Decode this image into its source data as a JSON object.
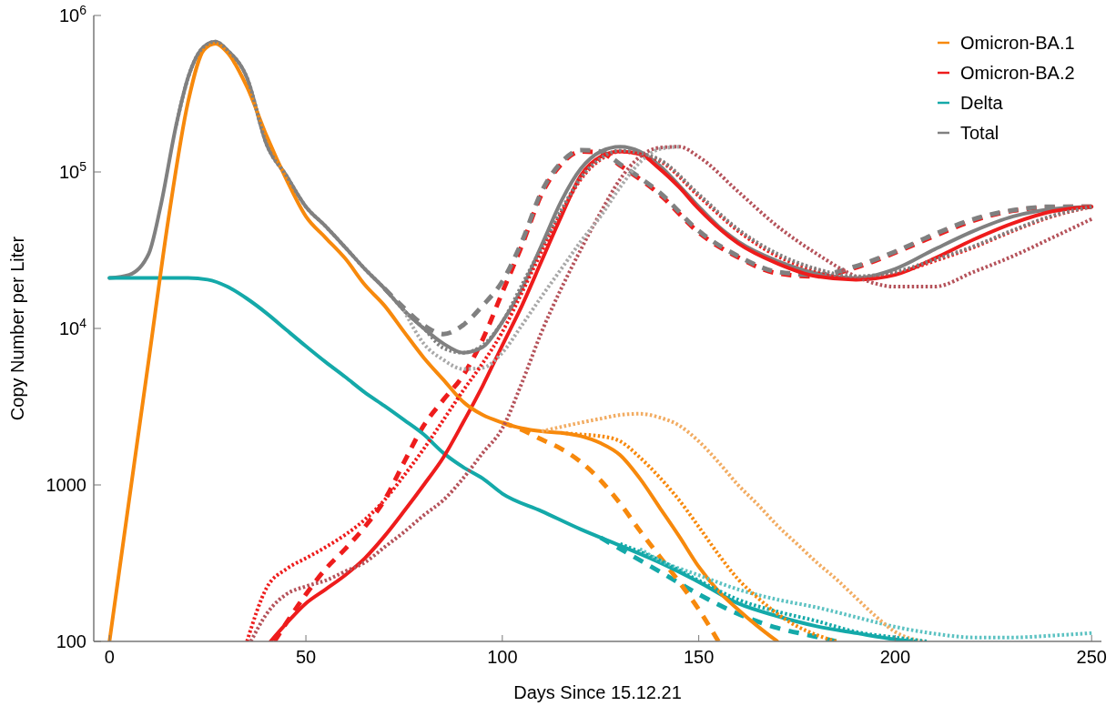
{
  "chart_data": {
    "type": "line",
    "xlabel": "Days Since 15.12.21",
    "ylabel": "Copy Number per Liter",
    "log": true,
    "legend": "top right",
    "xlim": [
      -4,
      252.5
    ],
    "xticks": [
      0,
      50,
      100,
      150,
      200,
      250
    ],
    "ylim": [
      100,
      1000000
    ],
    "yticks": [
      100,
      1000,
      {
        "value": 10000,
        "label": "10$^{4}$"
      },
      {
        "value": 100000,
        "label": "10$^{5}$"
      },
      {
        "value": 1000000,
        "label": "10$^{6}$"
      }
    ],
    "series": [
      {
        "name": "Omicron-BA.1",
        "color": "#f7890c",
        "line_style": "solid",
        "x": [
          0,
          5,
          10,
          15,
          20,
          24,
          27,
          30,
          35,
          40,
          45,
          50,
          55,
          60,
          65,
          70,
          75,
          80,
          85,
          90,
          95,
          100,
          105,
          110,
          115,
          120,
          125,
          130,
          135,
          140,
          145,
          150,
          155,
          160,
          165,
          170
        ],
        "values": [
          100,
          800,
          6300,
          50000,
          280000,
          600000,
          660000,
          580000,
          350000,
          170000,
          90000,
          52000,
          38000,
          28000,
          19000,
          14000,
          9500,
          6500,
          4700,
          3400,
          2800,
          2500,
          2300,
          2200,
          2150,
          2050,
          1850,
          1550,
          1100,
          720,
          470,
          300,
          210,
          160,
          125,
          100
        ]
      },
      {
        "name": "Omicron-BA.2",
        "color": "#ee1c1c",
        "line_style": "solid",
        "x": [
          41,
          45,
          50,
          55,
          60,
          65,
          70,
          75,
          80,
          85,
          90,
          95,
          100,
          105,
          110,
          115,
          120,
          125,
          130,
          135,
          140,
          145,
          150,
          160,
          170,
          180,
          190,
          200,
          210,
          220,
          230,
          240,
          250
        ],
        "values": [
          100,
          130,
          175,
          215,
          265,
          340,
          470,
          680,
          1000,
          1500,
          2500,
          4300,
          7800,
          14000,
          27000,
          52000,
          95000,
          125000,
          135000,
          130000,
          105000,
          80000,
          58000,
          35000,
          26000,
          21500,
          20500,
          22000,
          28000,
          37000,
          47000,
          56000,
          60000
        ]
      },
      {
        "name": "Delta",
        "color": "#14a9a9",
        "line_style": "solid",
        "x": [
          0,
          10,
          20,
          25,
          30,
          35,
          40,
          45,
          50,
          55,
          60,
          65,
          70,
          75,
          80,
          85,
          90,
          95,
          100,
          110,
          120,
          130,
          140,
          150,
          160,
          170,
          180,
          190,
          200,
          205
        ],
        "values": [
          21000,
          21000,
          21000,
          20500,
          18500,
          15500,
          12500,
          9800,
          7700,
          6100,
          4900,
          3900,
          3200,
          2600,
          2100,
          1600,
          1300,
          1100,
          880,
          680,
          520,
          410,
          320,
          240,
          175,
          145,
          125,
          113,
          103,
          100
        ]
      },
      {
        "name": "Total",
        "color": "#808080",
        "line_style": "solid",
        "x": [
          0,
          5,
          10,
          13,
          17,
          20,
          24,
          27,
          30,
          35,
          40,
          45,
          50,
          55,
          60,
          65,
          70,
          75,
          80,
          85,
          90,
          95,
          100,
          105,
          110,
          115,
          120,
          125,
          130,
          135,
          140,
          145,
          150,
          155,
          160,
          170,
          180,
          190,
          200,
          210,
          220,
          230,
          240,
          250
        ],
        "values": [
          21000,
          22000,
          30000,
          60000,
          200000,
          400000,
          630000,
          680000,
          600000,
          400000,
          150000,
          95000,
          60000,
          45000,
          33000,
          24000,
          18000,
          13000,
          10000,
          8000,
          7000,
          7600,
          11000,
          18000,
          34000,
          65000,
          105000,
          135000,
          145000,
          135000,
          110000,
          82000,
          60000,
          45000,
          36000,
          27000,
          22500,
          21000,
          24000,
          32000,
          42000,
          52000,
          58000,
          60000
        ]
      },
      {
        "color": "#808080",
        "line_style": "dashed",
        "x": [
          70,
          75,
          80,
          85,
          90,
          95,
          100,
          105,
          110,
          115,
          120,
          125,
          130,
          135,
          140,
          150,
          160,
          170,
          180,
          190,
          200,
          210,
          220,
          230,
          240,
          250
        ],
        "values": [
          18000,
          13500,
          10500,
          9200,
          10500,
          14000,
          20000,
          36000,
          75000,
          115000,
          138000,
          135000,
          112000,
          92000,
          74000,
          42000,
          29000,
          23000,
          22000,
          25000,
          31000,
          40000,
          50000,
          57000,
          60000,
          60000
        ]
      },
      {
        "color": "#ee1c1c",
        "line_style": "dashed",
        "x": [
          42,
          50,
          55,
          60,
          65,
          70,
          75,
          80,
          85,
          90,
          95,
          100,
          105,
          110,
          115,
          120,
          125,
          130,
          140,
          150,
          160,
          170,
          180,
          190,
          200,
          210,
          220,
          230,
          240,
          250
        ],
        "values": [
          100,
          200,
          290,
          390,
          540,
          800,
          1400,
          2400,
          3500,
          5000,
          8500,
          17000,
          34000,
          72000,
          112000,
          135000,
          133000,
          110000,
          72000,
          41000,
          28500,
          22500,
          21500,
          24500,
          30500,
          39000,
          49000,
          56500,
          59500,
          60000
        ]
      },
      {
        "color": "#f7890c",
        "line_style": "dashed",
        "x": [
          100,
          105,
          110,
          115,
          120,
          125,
          130,
          135,
          140,
          145,
          150,
          155
        ],
        "values": [
          2500,
          2250,
          1950,
          1700,
          1400,
          1070,
          760,
          510,
          350,
          240,
          160,
          100
        ]
      },
      {
        "color": "#14a9a9",
        "line_style": "dashed",
        "x": [
          125,
          130,
          140,
          150,
          160,
          170,
          180,
          185
        ],
        "values": [
          460,
          390,
          280,
          200,
          150,
          122,
          107,
          100
        ]
      },
      {
        "color": "#808080",
        "line_style": "dotted",
        "x": [
          17,
          20,
          24,
          27,
          30,
          35,
          40,
          45,
          50,
          55,
          60,
          65,
          70,
          75,
          80,
          85,
          90,
          95,
          100,
          105,
          110,
          115,
          120,
          125,
          130,
          135,
          140,
          150,
          160,
          170,
          180,
          190,
          200,
          210,
          220,
          230,
          240,
          250
        ],
        "values": [
          200000,
          400000,
          630000,
          680000,
          600000,
          400000,
          150000,
          95000,
          60000,
          45000,
          33000,
          24000,
          18000,
          13000,
          10000,
          7500,
          7000,
          7800,
          11000,
          19000,
          33000,
          57000,
          92000,
          122000,
          137000,
          132000,
          120000,
          72000,
          43000,
          30000,
          24000,
          21500,
          23000,
          27500,
          33500,
          42500,
          52500,
          60000
        ]
      },
      {
        "color": "#ee1c1c",
        "line_style": "dotted",
        "x": [
          35,
          40,
          45,
          50,
          55,
          60,
          65,
          70,
          75,
          80,
          85,
          90,
          95,
          100,
          105,
          110,
          115,
          120,
          125,
          130,
          135,
          140,
          150,
          160,
          170,
          180,
          190,
          200,
          210,
          220,
          230,
          240,
          250
        ],
        "values": [
          100,
          220,
          290,
          340,
          400,
          480,
          600,
          800,
          1150,
          1700,
          2600,
          4000,
          6000,
          9500,
          17000,
          31000,
          55000,
          90000,
          120000,
          135000,
          130000,
          118000,
          70000,
          42000,
          29000,
          23500,
          21000,
          22500,
          27000,
          33000,
          42000,
          52000,
          60000
        ]
      },
      {
        "color": "#f7890c",
        "line_style": "dotted",
        "x": [
          115,
          120,
          125,
          130,
          135,
          140,
          145,
          150,
          155,
          160,
          165,
          170,
          175,
          180,
          185
        ],
        "values": [
          2150,
          2100,
          2050,
          1900,
          1500,
          1120,
          800,
          540,
          360,
          250,
          190,
          150,
          125,
          110,
          100
        ]
      },
      {
        "color": "#14a9a9",
        "line_style": "dotted",
        "x": [
          130,
          140,
          150,
          160,
          170,
          180,
          190,
          200,
          208
        ],
        "values": [
          420,
          330,
          245,
          185,
          155,
          135,
          115,
          106,
          100
        ]
      },
      {
        "color": "#a8a8a8",
        "line_style": "dotted",
        "x": [
          75,
          80,
          85,
          90,
          95,
          100,
          105,
          110,
          115,
          120,
          125,
          130,
          135,
          140,
          145
        ],
        "values": [
          13000,
          8000,
          6300,
          5500,
          5600,
          7000,
          10500,
          16000,
          24000,
          36000,
          52000,
          80000,
          115000,
          140000,
          145000
        ]
      },
      {
        "color": "#b5525a",
        "line_style": "dotted",
        "x": [
          36,
          40,
          45,
          50,
          55,
          60,
          65,
          70,
          75,
          80,
          85,
          90,
          95,
          100,
          105,
          110,
          115,
          120,
          125,
          130,
          135,
          140,
          145,
          150,
          160,
          170,
          180,
          190,
          200,
          210,
          220,
          230,
          240,
          250
        ],
        "values": [
          100,
          150,
          200,
          225,
          245,
          280,
          320,
          400,
          500,
          640,
          800,
          1100,
          1600,
          2300,
          4500,
          9500,
          18000,
          32000,
          55000,
          90000,
          125000,
          143000,
          145000,
          125000,
          75000,
          45000,
          30000,
          21500,
          18500,
          18500,
          23000,
          29000,
          38000,
          50000
        ]
      },
      {
        "color": "#f2ac62",
        "line_style": "dotted",
        "x": [
          110,
          115,
          120,
          125,
          130,
          135,
          140,
          145,
          150,
          155,
          160,
          165,
          170,
          175,
          180,
          185,
          190,
          195,
          200,
          207
        ],
        "values": [
          2200,
          2350,
          2500,
          2650,
          2800,
          2850,
          2700,
          2400,
          1900,
          1400,
          1000,
          750,
          550,
          420,
          320,
          250,
          190,
          145,
          115,
          100
        ]
      },
      {
        "color": "#5cc2c2",
        "line_style": "dotted",
        "x": [
          135,
          140,
          150,
          160,
          170,
          180,
          190,
          200,
          210,
          220,
          230,
          240,
          250
        ],
        "values": [
          390,
          330,
          265,
          215,
          185,
          165,
          143,
          124,
          112,
          106,
          106,
          109,
          113
        ]
      }
    ]
  }
}
